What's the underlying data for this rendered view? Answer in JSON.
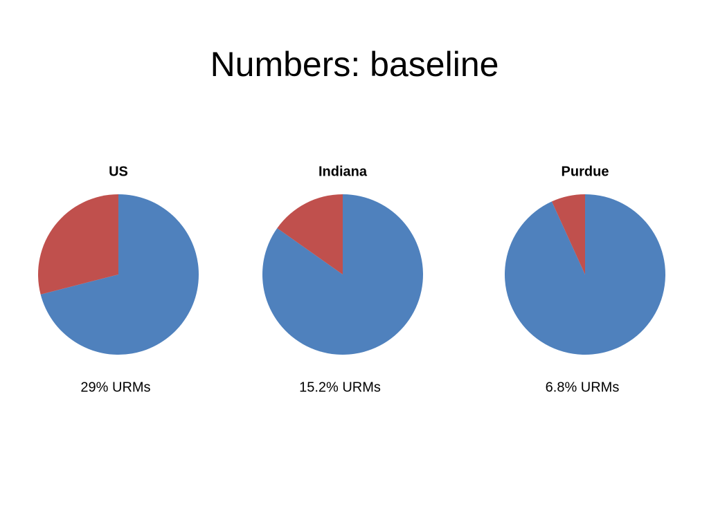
{
  "title": "Numbers:  baseline",
  "chart_data": [
    {
      "type": "pie",
      "title": "US",
      "values": [
        71,
        29
      ],
      "colors": [
        "#4f81bd",
        "#c0504d"
      ],
      "annotation": "29% URMs"
    },
    {
      "type": "pie",
      "title": "Indiana",
      "values": [
        84.8,
        15.2
      ],
      "colors": [
        "#4f81bd",
        "#c0504d"
      ],
      "annotation": "15.2% URMs"
    },
    {
      "type": "pie",
      "title": "Purdue",
      "values": [
        93.2,
        6.8
      ],
      "colors": [
        "#4f81bd",
        "#c0504d"
      ],
      "annotation": "6.8% URMs"
    }
  ]
}
